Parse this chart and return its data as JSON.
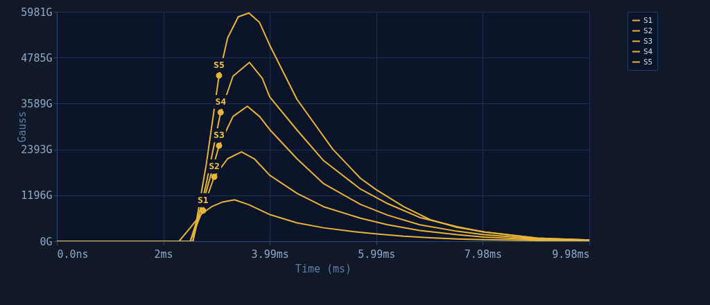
{
  "chart_data": {
    "type": "line",
    "xlabel": "Time (ms)",
    "ylabel": "Gauss",
    "xlim": [
      0,
      9.98
    ],
    "xticks": [
      {
        "value": 0,
        "label": "0.0ns"
      },
      {
        "value": 1.996,
        "label": "2ms"
      },
      {
        "value": 3.992,
        "label": "3.99ms"
      },
      {
        "value": 5.988,
        "label": "5.99ms"
      },
      {
        "value": 7.984,
        "label": "7.98ms"
      },
      {
        "value": 9.98,
        "label": "9.98ms"
      }
    ],
    "ylim": [
      0,
      5981
    ],
    "yticks": [
      {
        "value": 0,
        "label": "0G"
      },
      {
        "value": 1196,
        "label": "1196G"
      },
      {
        "value": 2393,
        "label": "2393G"
      },
      {
        "value": 3589,
        "label": "3589G"
      },
      {
        "value": 4785,
        "label": "4785G"
      },
      {
        "value": 5981,
        "label": "5981G"
      }
    ],
    "grid": true,
    "legend": "top right",
    "line_style": "solid",
    "series": [
      {
        "name": "S1",
        "color": "#e8b53a",
        "x": [
          0,
          1,
          2,
          2.29,
          2.5,
          2.7,
          2.9,
          3.1,
          3.33,
          3.6,
          4.0,
          4.5,
          5.0,
          5.5,
          6.0,
          6.5,
          7.0,
          7.5,
          8.0,
          9.0,
          9.98
        ],
        "values": [
          0,
          0,
          0,
          0,
          350,
          700,
          900,
          1020,
          1080,
          950,
          690,
          480,
          350,
          260,
          190,
          130,
          90,
          60,
          40,
          20,
          10
        ]
      },
      {
        "name": "S2",
        "color": "#e8b53a",
        "x": [
          0,
          1,
          2,
          2.5,
          2.7,
          2.95,
          3.2,
          3.46,
          3.7,
          3.99,
          4.5,
          5.0,
          5.69,
          6.2,
          6.8,
          7.5,
          8.0,
          9.0,
          9.98
        ],
        "values": [
          0,
          0,
          0,
          0,
          700,
          1680,
          2150,
          2330,
          2150,
          1720,
          1250,
          900,
          600,
          430,
          280,
          170,
          110,
          40,
          20
        ]
      },
      {
        "name": "S3",
        "color": "#e8b53a",
        "x": [
          0,
          1,
          2,
          2.5,
          2.8,
          3.04,
          3.3,
          3.57,
          3.8,
          3.99,
          4.5,
          5.0,
          5.69,
          6.2,
          6.8,
          7.5,
          8.0,
          9.0,
          9.98
        ],
        "values": [
          0,
          0,
          0,
          0,
          1300,
          2490,
          3250,
          3520,
          3250,
          2910,
          2150,
          1500,
          960,
          680,
          430,
          260,
          170,
          60,
          30
        ]
      },
      {
        "name": "S4",
        "color": "#e8b53a",
        "x": [
          0,
          1,
          2,
          2.55,
          2.8,
          3.07,
          3.3,
          3.61,
          3.85,
          3.99,
          4.5,
          5.0,
          5.69,
          6.2,
          6.8,
          7.5,
          8.0,
          9.0,
          9.98
        ],
        "values": [
          0,
          0,
          0,
          0,
          1500,
          3360,
          4300,
          4660,
          4250,
          3760,
          2900,
          2100,
          1360,
          980,
          620,
          380,
          240,
          80,
          30
        ]
      },
      {
        "name": "S5",
        "color": "#e8b53a",
        "x": [
          0,
          1,
          2,
          2.55,
          2.8,
          3.04,
          3.2,
          3.4,
          3.6,
          3.8,
          3.99,
          4.5,
          5.17,
          5.69,
          5.99,
          6.5,
          7.0,
          7.5,
          8.03,
          9.0,
          9.98
        ],
        "values": [
          0,
          0,
          0,
          0,
          2000,
          4320,
          5300,
          5850,
          5950,
          5700,
          5110,
          3700,
          2400,
          1640,
          1340,
          900,
          560,
          360,
          240,
          80,
          30
        ]
      }
    ],
    "annotations": [
      {
        "text": "S1",
        "x": 2.74,
        "y": 800
      },
      {
        "text": "S2",
        "x": 2.95,
        "y": 1680
      },
      {
        "text": "S3",
        "x": 3.04,
        "y": 2490
      },
      {
        "text": "S4",
        "x": 3.07,
        "y": 3360
      },
      {
        "text": "S5",
        "x": 3.04,
        "y": 4320
      }
    ]
  }
}
